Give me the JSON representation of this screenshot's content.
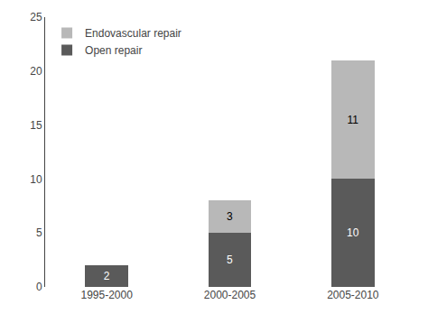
{
  "chart_data": {
    "type": "bar",
    "categories": [
      "1995-2000",
      "2000-2005",
      "2005-2010"
    ],
    "series": [
      {
        "name": "Open repair",
        "color": "#5a5a5a",
        "values": [
          2,
          5,
          10
        ]
      },
      {
        "name": "Endovascular repair",
        "color": "#b8b8b8",
        "values": [
          0,
          3,
          11
        ]
      }
    ],
    "stacked": true,
    "data_labels": true,
    "legend": "upper left",
    "grid": false,
    "ylim": [
      0,
      25
    ],
    "yticks": [
      0,
      5,
      10,
      15,
      20,
      25
    ]
  }
}
